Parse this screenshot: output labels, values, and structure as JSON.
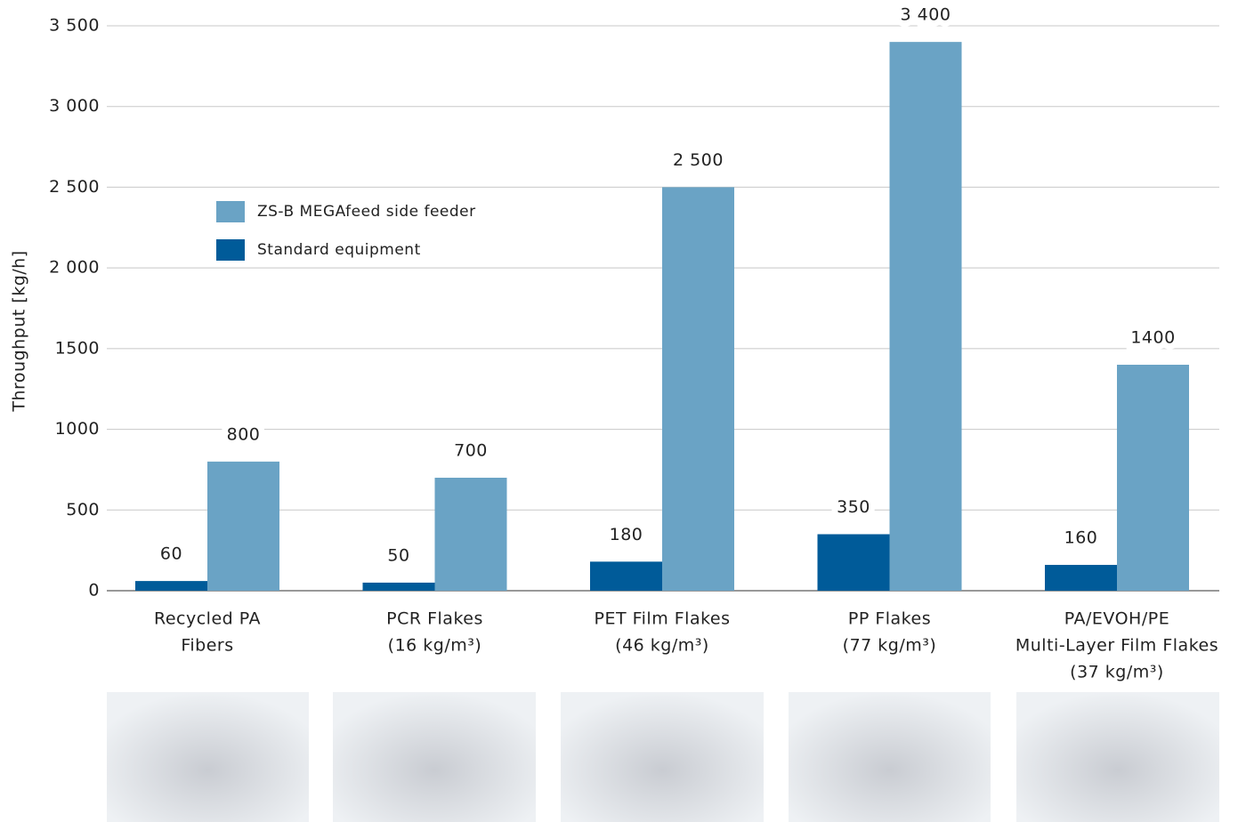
{
  "chart_data": {
    "type": "bar",
    "y_label": "Throughput [kg/h]",
    "categories": [
      [
        "Recycled PA",
        "Fibers"
      ],
      [
        "PCR Flakes",
        "(16 kg/m³)"
      ],
      [
        "PET Film Flakes",
        "(46 kg/m³)"
      ],
      [
        "PP Flakes",
        "(77 kg/m³)"
      ],
      [
        "PA/EVOH/PE",
        "Multi-Layer Film Flakes",
        "(37 kg/m³)"
      ]
    ],
    "series": [
      {
        "name": "ZS-B MEGAfeed side feeder",
        "color": "#6aa3c5",
        "values": [
          800,
          700,
          2500,
          3400,
          1400
        ],
        "value_labels": [
          "800",
          "700",
          "2 500",
          "3 400",
          "1400"
        ]
      },
      {
        "name": "Standard equipment",
        "color": "#005b99",
        "values": [
          60,
          50,
          180,
          350,
          160
        ]
      }
    ],
    "ylim": [
      0,
      3500
    ],
    "yticks": [
      0,
      500,
      1000,
      1500,
      {
        "value": 2000,
        "label": "2 000"
      },
      {
        "value": 2500,
        "label": "2 500"
      },
      {
        "value": 3000,
        "label": "3 000"
      },
      {
        "value": 3500,
        "label": "3 500"
      }
    ],
    "grid": true
  }
}
